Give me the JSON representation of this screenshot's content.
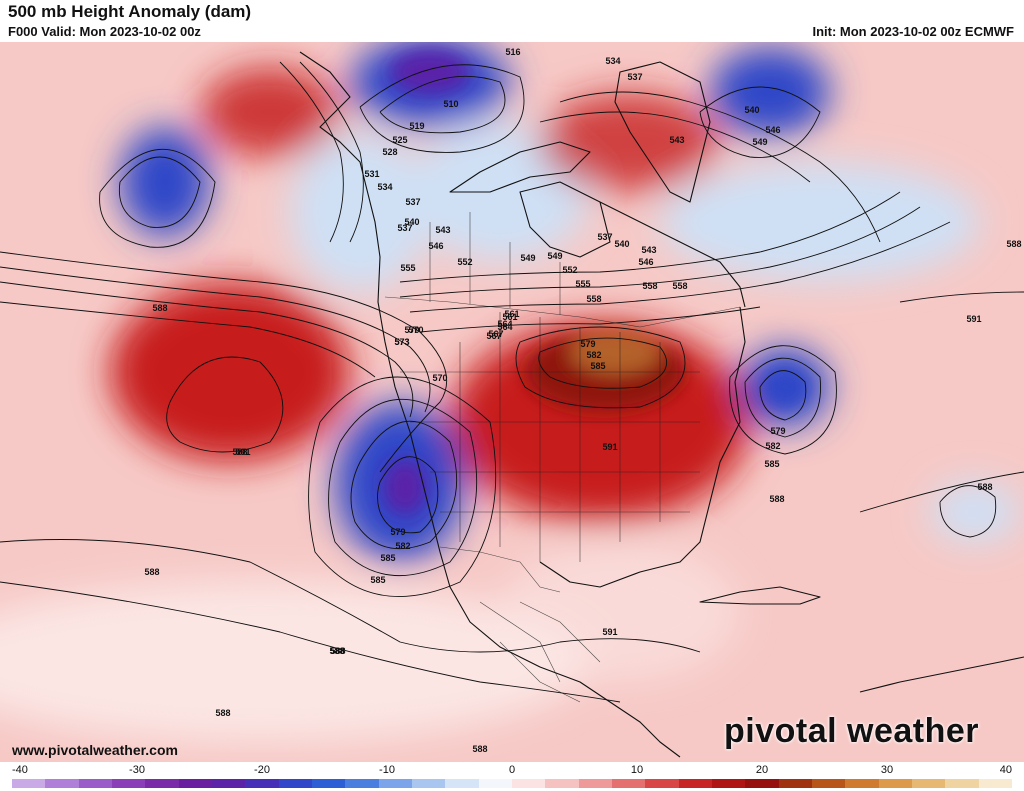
{
  "header": {
    "title": "500 mb Height Anomaly (dam)",
    "valid": "F000 Valid: Mon 2023-10-02 00z",
    "init": "Init: Mon 2023-10-02 00z ECMWF"
  },
  "footer": {
    "site": "www.pivotalweather.com",
    "brand": "pivotal weather"
  },
  "colorbar": {
    "ticks": [
      "-40",
      "-30",
      "-20",
      "-10",
      "0",
      "10",
      "20",
      "30",
      "40"
    ],
    "colors": [
      "#c9a9e6",
      "#b07fd8",
      "#9a5cc9",
      "#8a3fb8",
      "#7a2ba8",
      "#6a1fa0",
      "#5a23a8",
      "#4630b8",
      "#2f47c8",
      "#2c5fd6",
      "#4a7fe0",
      "#7ba4ea",
      "#a9c6f1",
      "#d6e4f7",
      "#f3f6fb",
      "#fbe3e3",
      "#f6c1c1",
      "#ef9a9a",
      "#e57070",
      "#d94646",
      "#c72525",
      "#b01515",
      "#961010",
      "#a0320f",
      "#b8561a",
      "#cf7a2e",
      "#dd9a4a",
      "#e6b872",
      "#efd3a0",
      "#f7ead0"
    ]
  },
  "map": {
    "colors": {
      "background": "#f6c9c6",
      "ridge": "#c71e1e",
      "ridge_core": "#8f1410",
      "ridge_peak": "#b4622a",
      "trough": "#2f47c8",
      "trough_core": "#5a23a8",
      "weak_neg": "#cfe0f5",
      "weak_pos": "#fbe6e4"
    },
    "height_labels": [
      "516",
      "534",
      "537",
      "510",
      "519",
      "525",
      "528",
      "531",
      "534",
      "537",
      "540",
      "543",
      "546",
      "549",
      "552",
      "555",
      "558",
      "561",
      "564",
      "567",
      "570",
      "573",
      "579",
      "582",
      "585",
      "588",
      "591",
      "540",
      "543",
      "546",
      "549",
      "537",
      "537",
      "540",
      "543",
      "546",
      "549",
      "552",
      "555",
      "558",
      "558",
      "561",
      "564",
      "567",
      "570",
      "570",
      "573",
      "579",
      "582",
      "585",
      "585",
      "588",
      "588",
      "588",
      "588",
      "588",
      "591",
      "591",
      "579",
      "582",
      "585",
      "588",
      "591",
      "588",
      "588",
      "588"
    ]
  }
}
